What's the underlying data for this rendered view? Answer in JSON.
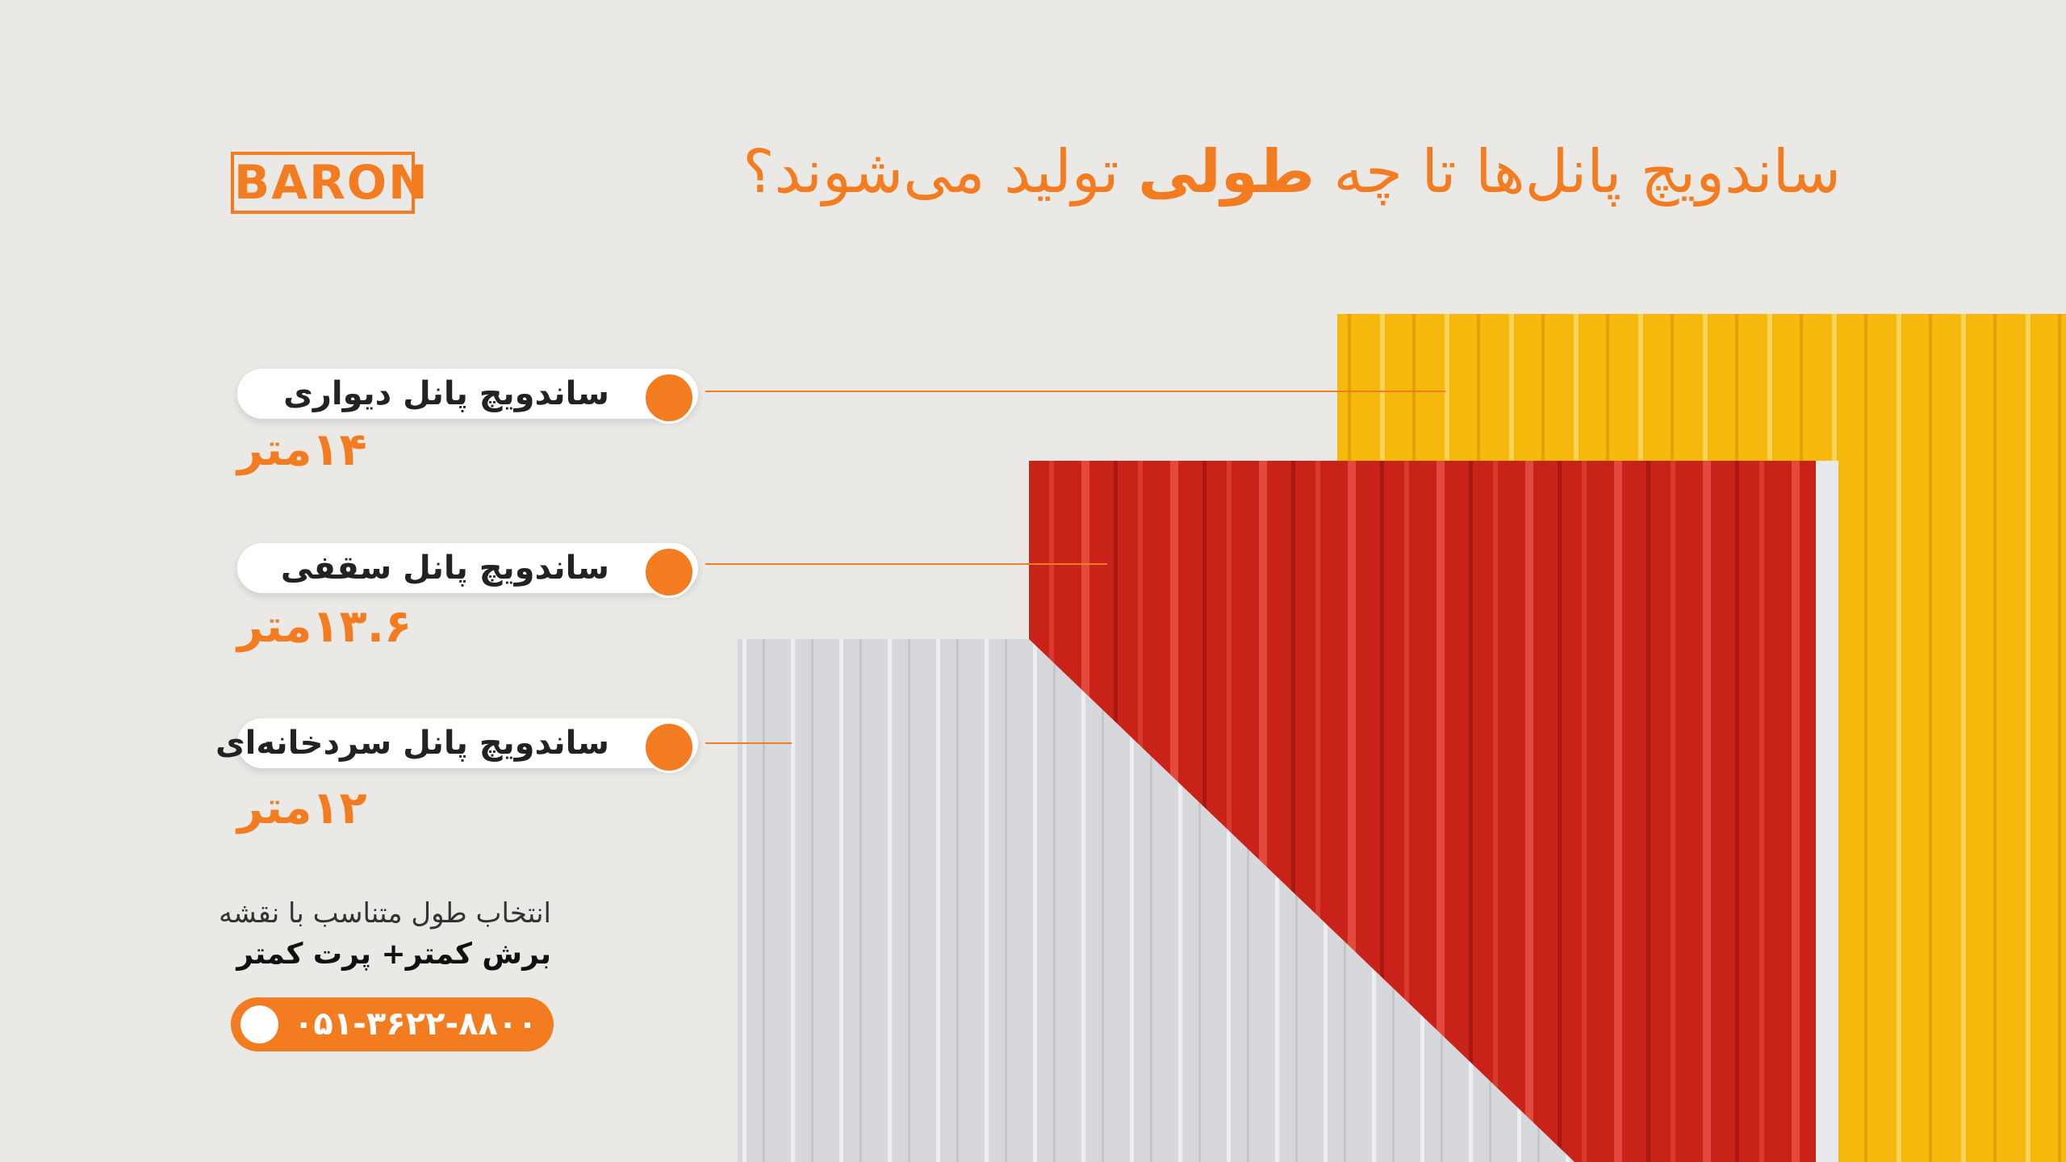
{
  "header": {
    "logo": "BARON",
    "title_start": "ساندویچ پانل‌ها تا چه",
    "title_bold": "طولی",
    "title_end": "تولید می‌شوند؟"
  },
  "items": [
    {
      "label": "ساندویچ پانل دیواری",
      "length": "۱۴متر"
    },
    {
      "label": "ساندویچ پانل سقفی",
      "length": "۱۳.۶متر"
    },
    {
      "label": "ساندویچ پانل سردخانه‌ای",
      "length": "۱۲متر"
    }
  ],
  "footer": {
    "note": "انتخاب طول متناسب با نقشه",
    "slogan": "برش کمتر+ پرت کمتر",
    "phone": "۰۵۱-۳۶۲۲-۸۸۰۰"
  }
}
